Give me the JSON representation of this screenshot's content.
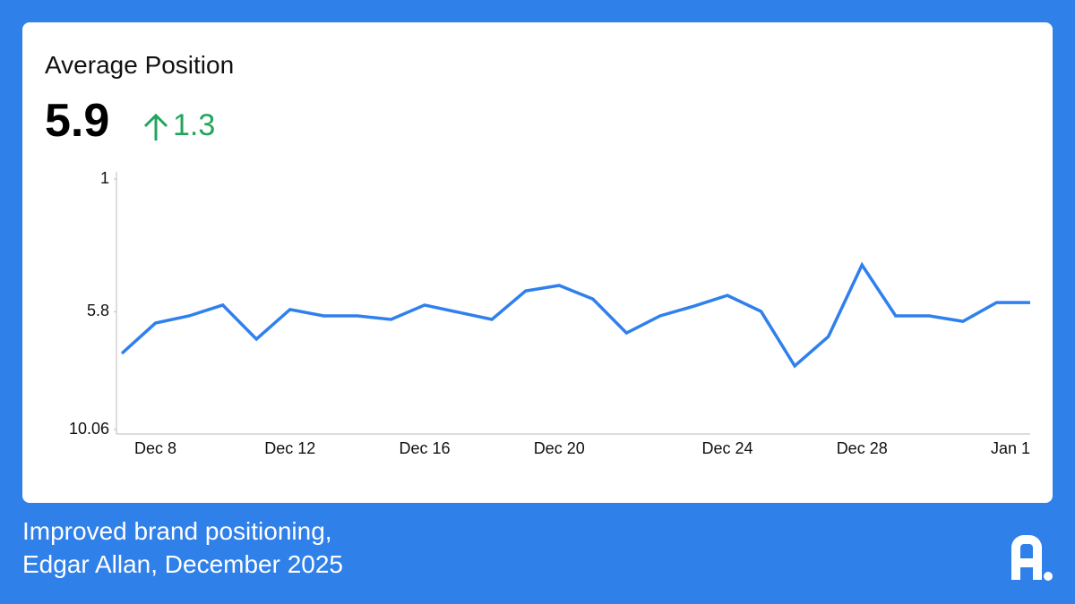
{
  "header": {
    "title": "Average Position",
    "value": "5.9",
    "change": "1.3"
  },
  "chart_data": {
    "type": "line",
    "categories": [
      null,
      "Dec 8",
      null,
      null,
      null,
      "Dec 12",
      null,
      null,
      null,
      "Dec 16",
      null,
      null,
      null,
      "Dec 20",
      null,
      null,
      null,
      null,
      "Dec 24",
      null,
      null,
      null,
      "Dec 28",
      null,
      null,
      null,
      "Jan 1",
      null
    ],
    "series": [
      {
        "name": "Average Position",
        "color": "#2f80ed",
        "values": [
          7.31,
          6.21,
          5.95,
          5.56,
          6.79,
          5.72,
          5.95,
          5.95,
          6.08,
          5.56,
          5.82,
          6.08,
          5.05,
          4.85,
          5.34,
          6.57,
          5.95,
          5.6,
          5.21,
          5.79,
          7.76,
          6.7,
          4.11,
          5.95,
          5.95,
          6.15,
          5.47,
          5.47
        ]
      }
    ],
    "ylim": [
      1,
      10.06
    ],
    "y_inverted": true,
    "yticks": [
      1,
      5.8,
      10.06
    ],
    "grid": false
  },
  "footer": {
    "caption": [
      "Improved brand positioning,",
      "Edgar Allan, December 2025"
    ]
  }
}
